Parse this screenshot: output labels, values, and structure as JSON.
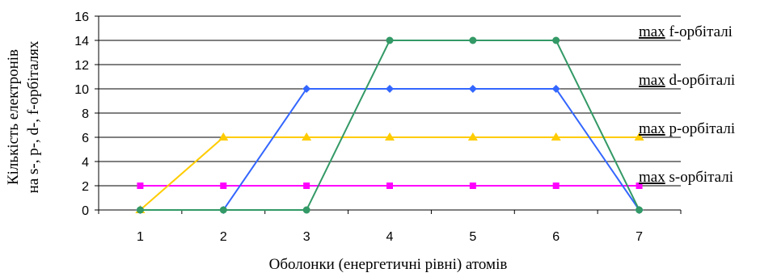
{
  "chart_data": {
    "type": "line",
    "x": [
      1,
      2,
      3,
      4,
      5,
      6,
      7
    ],
    "xlabel": "Оболонки (енергетичні рівні) атомів",
    "ylabel_lines": [
      "Кількість електронів",
      "на s-, p-, d-, f-орбіталях"
    ],
    "ylim": [
      0,
      16
    ],
    "yticks": [
      0,
      2,
      4,
      6,
      8,
      10,
      12,
      14,
      16
    ],
    "grid": true,
    "series": [
      {
        "key": "s",
        "color": "#ff00ff",
        "marker": "square",
        "values": [
          2,
          2,
          2,
          2,
          2,
          2,
          2
        ]
      },
      {
        "key": "p",
        "color": "#ffcc00",
        "marker": "triangle",
        "values": [
          0,
          6,
          6,
          6,
          6,
          6,
          6
        ]
      },
      {
        "key": "d",
        "color": "#3366ff",
        "marker": "diamond",
        "values": [
          0,
          0,
          10,
          10,
          10,
          10,
          0
        ]
      },
      {
        "key": "f",
        "color": "#339966",
        "marker": "circle",
        "values": [
          0,
          0,
          0,
          14,
          14,
          14,
          0
        ]
      }
    ],
    "annotations": [
      {
        "y": 14,
        "prefix": "max",
        "text": " f-орбіталі"
      },
      {
        "y": 10,
        "prefix": "max",
        "text": " d-орбіталі"
      },
      {
        "y": 6,
        "prefix": "max",
        "text": " p-орбіталі"
      },
      {
        "y": 2,
        "prefix": "max",
        "text": " s-орбіталі"
      }
    ]
  }
}
